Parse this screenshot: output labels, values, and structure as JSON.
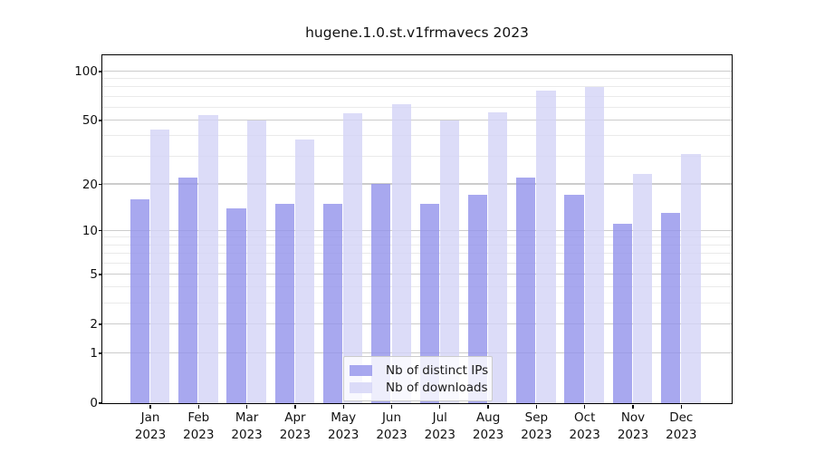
{
  "chart_data": {
    "type": "bar",
    "title": "hugene.1.0.st.v1frmavecs 2023",
    "categories": [
      "Jan 2023",
      "Feb 2023",
      "Mar 2023",
      "Apr 2023",
      "May 2023",
      "Jun 2023",
      "Jul 2023",
      "Aug 2023",
      "Sep 2023",
      "Oct 2023",
      "Nov 2023",
      "Dec 2023"
    ],
    "series": [
      {
        "name": "Nb of distinct IPs",
        "color": "rgba(146,146,235,0.8)",
        "values": [
          16,
          22,
          14,
          15,
          15,
          20,
          15,
          17,
          22,
          17,
          11,
          13
        ]
      },
      {
        "name": "Nb of downloads",
        "color": "rgba(211,211,246,0.8)",
        "values": [
          44,
          54,
          50,
          38,
          55,
          63,
          50,
          56,
          76,
          80,
          23,
          31
        ]
      }
    ],
    "xlabel": "",
    "ylabel": "",
    "yscale": "log1p",
    "ylim": [
      0,
      125.6
    ],
    "yticks": [
      0,
      1,
      2,
      5,
      10,
      20,
      50,
      100
    ],
    "yticks_minor": [
      3,
      4,
      6,
      7,
      8,
      9,
      30,
      40,
      60,
      70,
      80,
      90
    ],
    "grid": true,
    "legend_position": "lower center"
  },
  "colors": {
    "background": "#ffffff",
    "frame": "#000000",
    "text": "#1a1a1a",
    "grid_major": "#cccccc",
    "grid_minor": "#eaeaea",
    "legend_bg": "rgba(255,255,255,0.8)",
    "legend_border": "#cccccc"
  }
}
